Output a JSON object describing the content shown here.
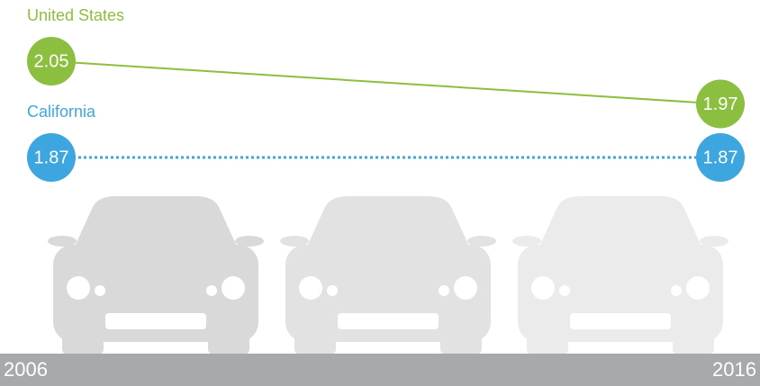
{
  "chart_data": {
    "type": "line",
    "x": [
      2006,
      2016
    ],
    "series": [
      {
        "name": "United States",
        "color": "#8cbe3f",
        "dash": "solid",
        "values": [
          2.05,
          1.97
        ]
      },
      {
        "name": "California",
        "color": "#3da6de",
        "dash": "dotted",
        "values": [
          1.87,
          1.87
        ]
      }
    ]
  }
}
